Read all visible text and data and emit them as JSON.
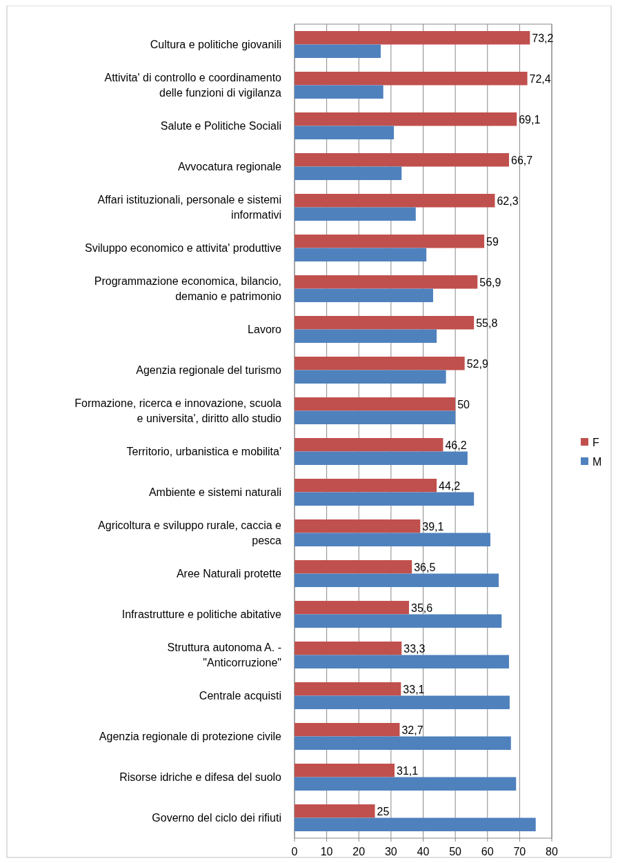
{
  "chart_data": {
    "type": "bar",
    "orientation": "horizontal",
    "categories": [
      "Cultura  e politiche giovanili",
      "Attivita' di controllo e coordinamento delle funzioni di vigilanza",
      "Salute e Politiche Sociali",
      "Avvocatura regionale",
      "Affari istituzionali, personale e sistemi informativi",
      "Sviluppo economico e attivita' produttive",
      "Programmazione economica, bilancio, demanio e patrimonio",
      "Lavoro",
      "Agenzia regionale del turismo",
      "Formazione, ricerca e innovazione, scuola e universita', diritto allo studio",
      "Territorio, urbanistica e  mobilita'",
      "Ambiente e sistemi naturali",
      "Agricoltura e sviluppo rurale, caccia e pesca",
      "Aree Naturali protette",
      "Infrastrutture e politiche abitative",
      "Struttura autonoma   A. - \"Anticorruzione\"",
      "Centrale acquisti",
      "Agenzia regionale di protezione civile",
      "Risorse idriche e difesa del suolo",
      "Governo del ciclo dei rifiuti"
    ],
    "series": [
      {
        "name": "F",
        "color": "#c0504d",
        "values": [
          73.2,
          72.4,
          69.1,
          66.7,
          62.3,
          59,
          56.9,
          55.8,
          52.9,
          50,
          46.2,
          44.2,
          39.1,
          36.5,
          35.6,
          33.3,
          33.1,
          32.7,
          31.1,
          25
        ],
        "value_labels": [
          "73,2",
          "72,4",
          "69,1",
          "66,7",
          "62,3",
          "59",
          "56,9",
          "55,8",
          "52,9",
          "50",
          "46,2",
          "44,2",
          "39,1",
          "36,5",
          "35,6",
          "33,3",
          "33,1",
          "32,7",
          "31,1",
          "25"
        ]
      },
      {
        "name": "M",
        "color": "#4f81bd",
        "values": [
          26.8,
          27.6,
          30.9,
          33.3,
          37.7,
          41,
          43.1,
          44.2,
          47.1,
          50,
          53.8,
          55.8,
          60.9,
          63.5,
          64.4,
          66.7,
          66.9,
          67.3,
          68.9,
          75
        ]
      }
    ],
    "xlim": [
      0,
      80
    ],
    "xticks": [
      0,
      10,
      20,
      30,
      40,
      50,
      60,
      70,
      80
    ],
    "grid": "x",
    "legend": "right"
  }
}
